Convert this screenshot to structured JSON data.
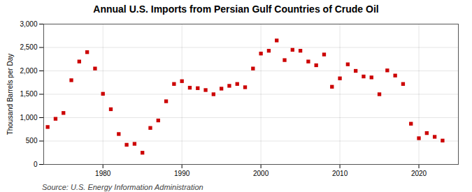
{
  "chart_data": {
    "type": "scatter",
    "title": "Annual U.S. Imports from Persian Gulf Countries of Crude Oil",
    "ylabel": "Thousand Barrels per Day",
    "source": "Source: U.S. Energy Information Administration",
    "x": [
      1973,
      1974,
      1975,
      1976,
      1977,
      1978,
      1979,
      1980,
      1981,
      1982,
      1983,
      1984,
      1985,
      1986,
      1987,
      1988,
      1989,
      1990,
      1991,
      1992,
      1993,
      1994,
      1995,
      1996,
      1997,
      1998,
      1999,
      2000,
      2001,
      2002,
      2003,
      2004,
      2005,
      2006,
      2007,
      2008,
      2009,
      2010,
      2011,
      2012,
      2013,
      2014,
      2015,
      2016,
      2017,
      2018,
      2019,
      2020,
      2021,
      2022,
      2023
    ],
    "values": [
      800,
      975,
      1100,
      1800,
      2200,
      2400,
      2050,
      1510,
      1180,
      650,
      420,
      440,
      250,
      780,
      940,
      1350,
      1720,
      1780,
      1640,
      1630,
      1590,
      1500,
      1620,
      1680,
      1720,
      1650,
      2050,
      2370,
      2430,
      2650,
      2230,
      2450,
      2430,
      2200,
      2120,
      2350,
      1660,
      1840,
      2140,
      2000,
      1880,
      1860,
      1500,
      2010,
      1900,
      1720,
      870,
      560,
      670,
      590,
      510
    ],
    "color": "#cc0000",
    "marker": "square",
    "xlim": [
      1972.5,
      2025
    ],
    "xticks": [
      1980,
      1990,
      2000,
      2010,
      2020
    ],
    "ylim": [
      0,
      3000
    ],
    "yticks": [
      0,
      500,
      {
        "value": 1000,
        "label": "1,000"
      },
      {
        "value": 1500,
        "label": "1,500"
      },
      {
        "value": 2000,
        "label": "2,000"
      },
      {
        "value": 2500,
        "label": "2,500"
      },
      {
        "value": 3000,
        "label": "3,000"
      }
    ],
    "grid": true
  }
}
